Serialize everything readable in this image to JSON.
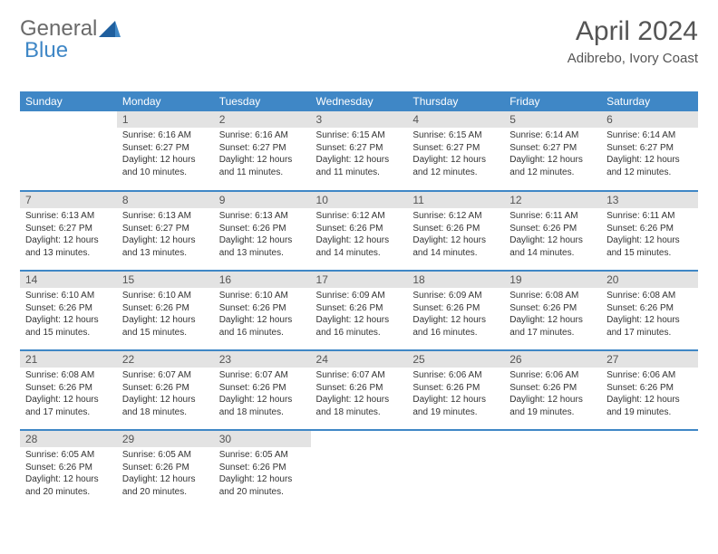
{
  "logo": {
    "part1": "General",
    "part2": "Blue"
  },
  "title": "April 2024",
  "subtitle": "Adibrebo, Ivory Coast",
  "columns": [
    "Sunday",
    "Monday",
    "Tuesday",
    "Wednesday",
    "Thursday",
    "Friday",
    "Saturday"
  ],
  "colors": {
    "header_bg": "#3f87c6",
    "header_text": "#ffffff",
    "daynum_bg": "#e3e3e3",
    "row_border": "#3f87c6",
    "title_color": "#555555",
    "logo_gray": "#6a6a6a",
    "logo_blue": "#3f87c6"
  },
  "weeks": [
    [
      {
        "n": "",
        "sr": "",
        "ss": "",
        "dl": ""
      },
      {
        "n": "1",
        "sr": "Sunrise: 6:16 AM",
        "ss": "Sunset: 6:27 PM",
        "dl": "Daylight: 12 hours and 10 minutes."
      },
      {
        "n": "2",
        "sr": "Sunrise: 6:16 AM",
        "ss": "Sunset: 6:27 PM",
        "dl": "Daylight: 12 hours and 11 minutes."
      },
      {
        "n": "3",
        "sr": "Sunrise: 6:15 AM",
        "ss": "Sunset: 6:27 PM",
        "dl": "Daylight: 12 hours and 11 minutes."
      },
      {
        "n": "4",
        "sr": "Sunrise: 6:15 AM",
        "ss": "Sunset: 6:27 PM",
        "dl": "Daylight: 12 hours and 12 minutes."
      },
      {
        "n": "5",
        "sr": "Sunrise: 6:14 AM",
        "ss": "Sunset: 6:27 PM",
        "dl": "Daylight: 12 hours and 12 minutes."
      },
      {
        "n": "6",
        "sr": "Sunrise: 6:14 AM",
        "ss": "Sunset: 6:27 PM",
        "dl": "Daylight: 12 hours and 12 minutes."
      }
    ],
    [
      {
        "n": "7",
        "sr": "Sunrise: 6:13 AM",
        "ss": "Sunset: 6:27 PM",
        "dl": "Daylight: 12 hours and 13 minutes."
      },
      {
        "n": "8",
        "sr": "Sunrise: 6:13 AM",
        "ss": "Sunset: 6:27 PM",
        "dl": "Daylight: 12 hours and 13 minutes."
      },
      {
        "n": "9",
        "sr": "Sunrise: 6:13 AM",
        "ss": "Sunset: 6:26 PM",
        "dl": "Daylight: 12 hours and 13 minutes."
      },
      {
        "n": "10",
        "sr": "Sunrise: 6:12 AM",
        "ss": "Sunset: 6:26 PM",
        "dl": "Daylight: 12 hours and 14 minutes."
      },
      {
        "n": "11",
        "sr": "Sunrise: 6:12 AM",
        "ss": "Sunset: 6:26 PM",
        "dl": "Daylight: 12 hours and 14 minutes."
      },
      {
        "n": "12",
        "sr": "Sunrise: 6:11 AM",
        "ss": "Sunset: 6:26 PM",
        "dl": "Daylight: 12 hours and 14 minutes."
      },
      {
        "n": "13",
        "sr": "Sunrise: 6:11 AM",
        "ss": "Sunset: 6:26 PM",
        "dl": "Daylight: 12 hours and 15 minutes."
      }
    ],
    [
      {
        "n": "14",
        "sr": "Sunrise: 6:10 AM",
        "ss": "Sunset: 6:26 PM",
        "dl": "Daylight: 12 hours and 15 minutes."
      },
      {
        "n": "15",
        "sr": "Sunrise: 6:10 AM",
        "ss": "Sunset: 6:26 PM",
        "dl": "Daylight: 12 hours and 15 minutes."
      },
      {
        "n": "16",
        "sr": "Sunrise: 6:10 AM",
        "ss": "Sunset: 6:26 PM",
        "dl": "Daylight: 12 hours and 16 minutes."
      },
      {
        "n": "17",
        "sr": "Sunrise: 6:09 AM",
        "ss": "Sunset: 6:26 PM",
        "dl": "Daylight: 12 hours and 16 minutes."
      },
      {
        "n": "18",
        "sr": "Sunrise: 6:09 AM",
        "ss": "Sunset: 6:26 PM",
        "dl": "Daylight: 12 hours and 16 minutes."
      },
      {
        "n": "19",
        "sr": "Sunrise: 6:08 AM",
        "ss": "Sunset: 6:26 PM",
        "dl": "Daylight: 12 hours and 17 minutes."
      },
      {
        "n": "20",
        "sr": "Sunrise: 6:08 AM",
        "ss": "Sunset: 6:26 PM",
        "dl": "Daylight: 12 hours and 17 minutes."
      }
    ],
    [
      {
        "n": "21",
        "sr": "Sunrise: 6:08 AM",
        "ss": "Sunset: 6:26 PM",
        "dl": "Daylight: 12 hours and 17 minutes."
      },
      {
        "n": "22",
        "sr": "Sunrise: 6:07 AM",
        "ss": "Sunset: 6:26 PM",
        "dl": "Daylight: 12 hours and 18 minutes."
      },
      {
        "n": "23",
        "sr": "Sunrise: 6:07 AM",
        "ss": "Sunset: 6:26 PM",
        "dl": "Daylight: 12 hours and 18 minutes."
      },
      {
        "n": "24",
        "sr": "Sunrise: 6:07 AM",
        "ss": "Sunset: 6:26 PM",
        "dl": "Daylight: 12 hours and 18 minutes."
      },
      {
        "n": "25",
        "sr": "Sunrise: 6:06 AM",
        "ss": "Sunset: 6:26 PM",
        "dl": "Daylight: 12 hours and 19 minutes."
      },
      {
        "n": "26",
        "sr": "Sunrise: 6:06 AM",
        "ss": "Sunset: 6:26 PM",
        "dl": "Daylight: 12 hours and 19 minutes."
      },
      {
        "n": "27",
        "sr": "Sunrise: 6:06 AM",
        "ss": "Sunset: 6:26 PM",
        "dl": "Daylight: 12 hours and 19 minutes."
      }
    ],
    [
      {
        "n": "28",
        "sr": "Sunrise: 6:05 AM",
        "ss": "Sunset: 6:26 PM",
        "dl": "Daylight: 12 hours and 20 minutes."
      },
      {
        "n": "29",
        "sr": "Sunrise: 6:05 AM",
        "ss": "Sunset: 6:26 PM",
        "dl": "Daylight: 12 hours and 20 minutes."
      },
      {
        "n": "30",
        "sr": "Sunrise: 6:05 AM",
        "ss": "Sunset: 6:26 PM",
        "dl": "Daylight: 12 hours and 20 minutes."
      },
      {
        "n": "",
        "sr": "",
        "ss": "",
        "dl": ""
      },
      {
        "n": "",
        "sr": "",
        "ss": "",
        "dl": ""
      },
      {
        "n": "",
        "sr": "",
        "ss": "",
        "dl": ""
      },
      {
        "n": "",
        "sr": "",
        "ss": "",
        "dl": ""
      }
    ]
  ]
}
